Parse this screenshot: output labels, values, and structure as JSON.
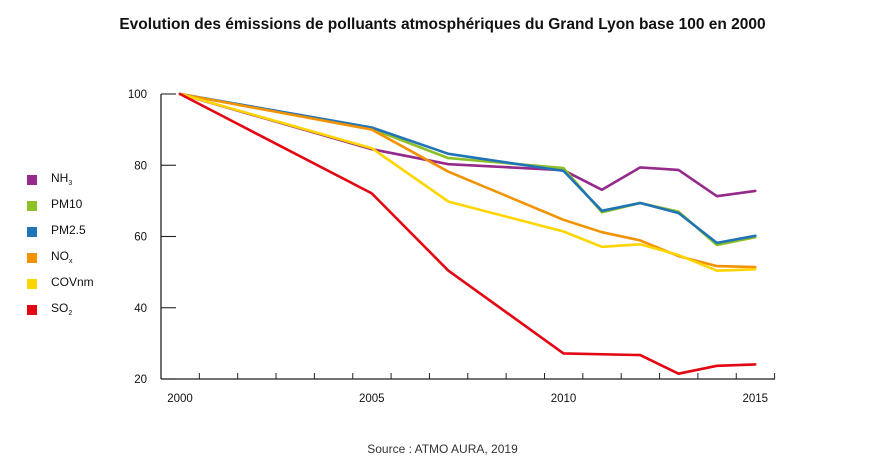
{
  "chart_data": {
    "type": "line",
    "title": "Evolution des émissions de polluants atmosphériques du Grand Lyon base 100 en 2000",
    "source": "Source : ATMO AURA, 2019",
    "xlabel": "",
    "ylabel": "",
    "xlim": [
      1999.5,
      2016
    ],
    "ylim": [
      20,
      100
    ],
    "x_ticks": [
      2000,
      2005,
      2010,
      2015
    ],
    "y_ticks": [
      20,
      40,
      60,
      80,
      100
    ],
    "grid": false,
    "legend_position": "left",
    "series": [
      {
        "key": "nh3",
        "name": "NH",
        "sub": "3",
        "color": "#962a8c",
        "points": [
          [
            2000,
            100
          ],
          [
            2005,
            84.5
          ],
          [
            2007,
            80.3
          ],
          [
            2010,
            78.6
          ],
          [
            2011,
            73.1
          ],
          [
            2012,
            79.4
          ],
          [
            2013,
            78.7
          ],
          [
            2014,
            71.3
          ],
          [
            2015,
            72.8
          ]
        ]
      },
      {
        "key": "pm10",
        "name": "PM10",
        "sub": "",
        "color": "#8dbf26",
        "points": [
          [
            2000,
            100
          ],
          [
            2005,
            90.2
          ],
          [
            2007,
            82.0
          ],
          [
            2010,
            79.2
          ],
          [
            2011,
            66.8
          ],
          [
            2012,
            69.4
          ],
          [
            2013,
            67.0
          ],
          [
            2014,
            57.6
          ],
          [
            2015,
            59.8
          ]
        ]
      },
      {
        "key": "pm25",
        "name": "PM2.5",
        "sub": "",
        "color": "#1f74b8",
        "points": [
          [
            2000,
            100
          ],
          [
            2005,
            90.6
          ],
          [
            2007,
            83.2
          ],
          [
            2010,
            78.4
          ],
          [
            2011,
            67.2
          ],
          [
            2012,
            69.4
          ],
          [
            2013,
            66.6
          ],
          [
            2014,
            58.2
          ],
          [
            2015,
            60.2
          ]
        ]
      },
      {
        "key": "nox",
        "name": "NO",
        "sub": "x",
        "color": "#f39200",
        "points": [
          [
            2000,
            100
          ],
          [
            2005,
            90.0
          ],
          [
            2007,
            78.2
          ],
          [
            2010,
            64.7
          ],
          [
            2011,
            61.2
          ],
          [
            2012,
            58.9
          ],
          [
            2013,
            54.5
          ],
          [
            2014,
            51.7
          ],
          [
            2015,
            51.4
          ]
        ]
      },
      {
        "key": "covnm",
        "name": "COVnm",
        "sub": "",
        "color": "#ffd500",
        "points": [
          [
            2000,
            100
          ],
          [
            2005,
            84.8
          ],
          [
            2007,
            69.8
          ],
          [
            2010,
            61.4
          ],
          [
            2011,
            57.1
          ],
          [
            2012,
            57.8
          ],
          [
            2013,
            54.8
          ],
          [
            2014,
            50.4
          ],
          [
            2015,
            50.8
          ]
        ]
      },
      {
        "key": "so2",
        "name": "SO",
        "sub": "2",
        "color": "#e30613",
        "points": [
          [
            2000,
            100
          ],
          [
            2005,
            72.1
          ],
          [
            2007,
            50.4
          ],
          [
            2010,
            27.2
          ],
          [
            2012,
            26.7
          ],
          [
            2013,
            21.5
          ],
          [
            2014,
            23.7
          ],
          [
            2015,
            24.1
          ]
        ]
      }
    ],
    "axis_color": "#222222"
  }
}
